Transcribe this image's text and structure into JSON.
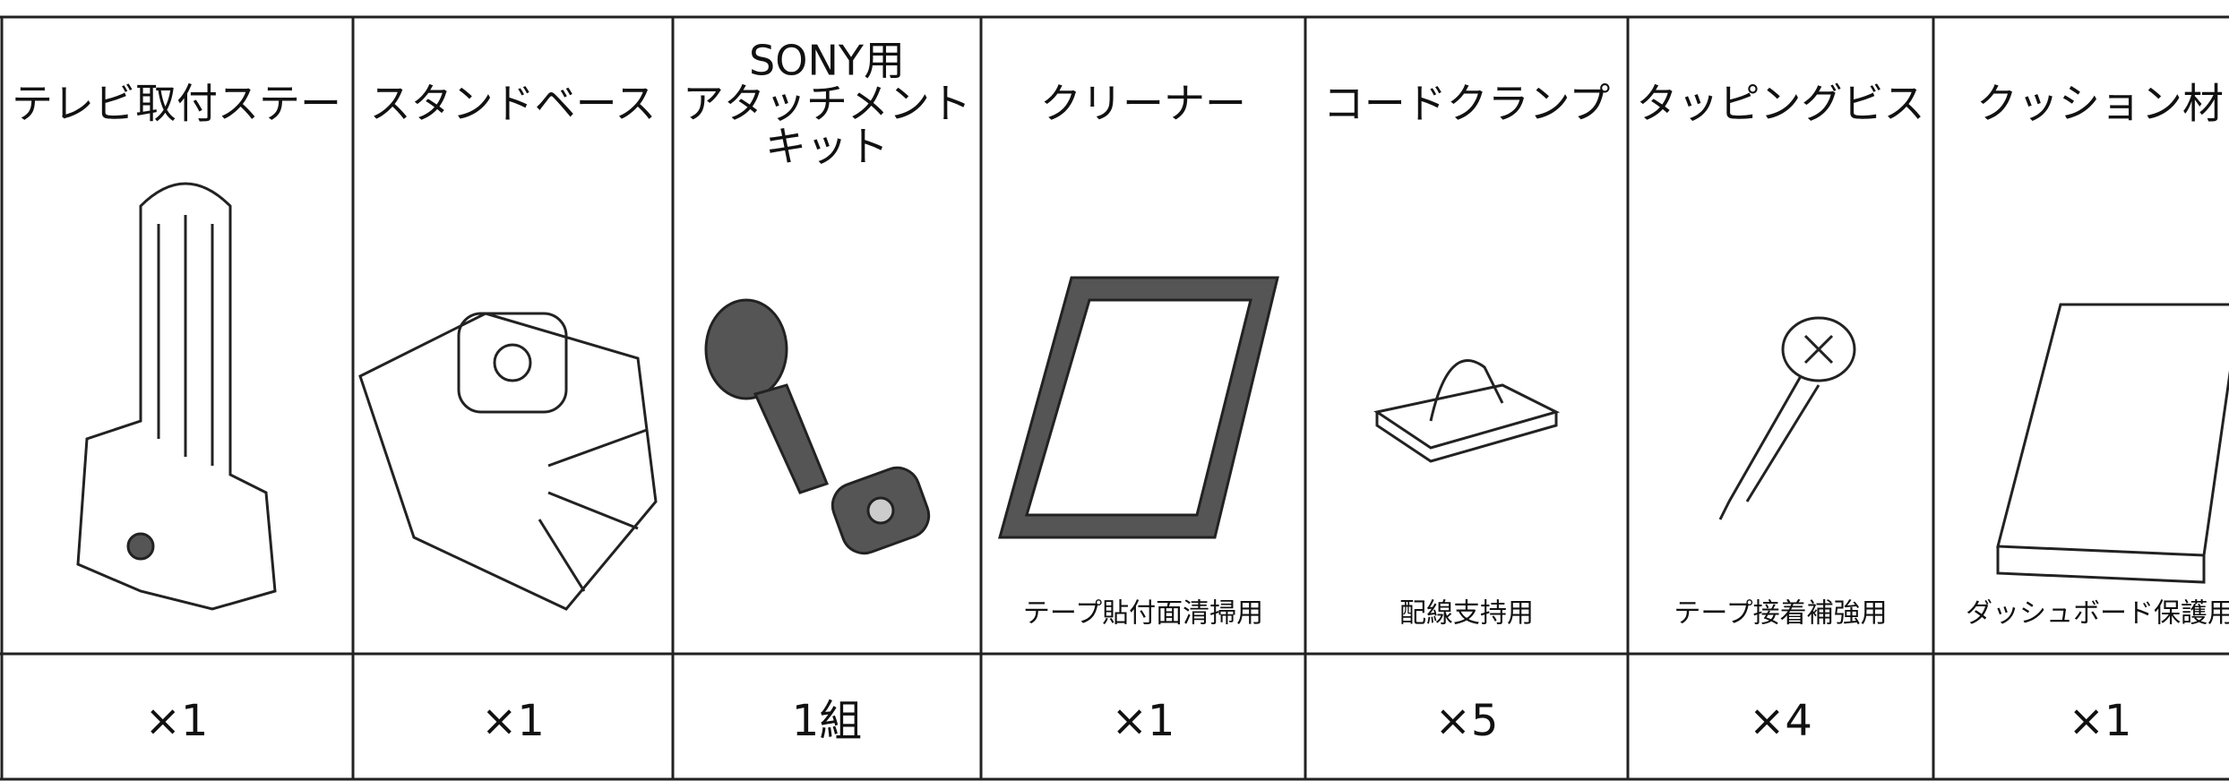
{
  "table": {
    "items": [
      {
        "name": [
          "テレビ取付ステー"
        ],
        "qty": "×1"
      },
      {
        "name": [
          "スタンドベース"
        ],
        "qty": "×1"
      },
      {
        "name": [
          "SONY用",
          "アタッチメント",
          "キット"
        ],
        "qty": "1組"
      },
      {
        "name": [
          "クリーナー"
        ],
        "note": "テープ貼付面清掃用",
        "qty": "×1"
      },
      {
        "name": [
          "コードクランプ"
        ],
        "note": "配線支持用",
        "qty": "×5"
      },
      {
        "name": [
          "タッピングビス"
        ],
        "note": "テープ接着補強用",
        "qty": "×4"
      },
      {
        "name": [
          "クッション材"
        ],
        "note": "ダッシュボード保護用",
        "qty": "×1"
      }
    ]
  }
}
